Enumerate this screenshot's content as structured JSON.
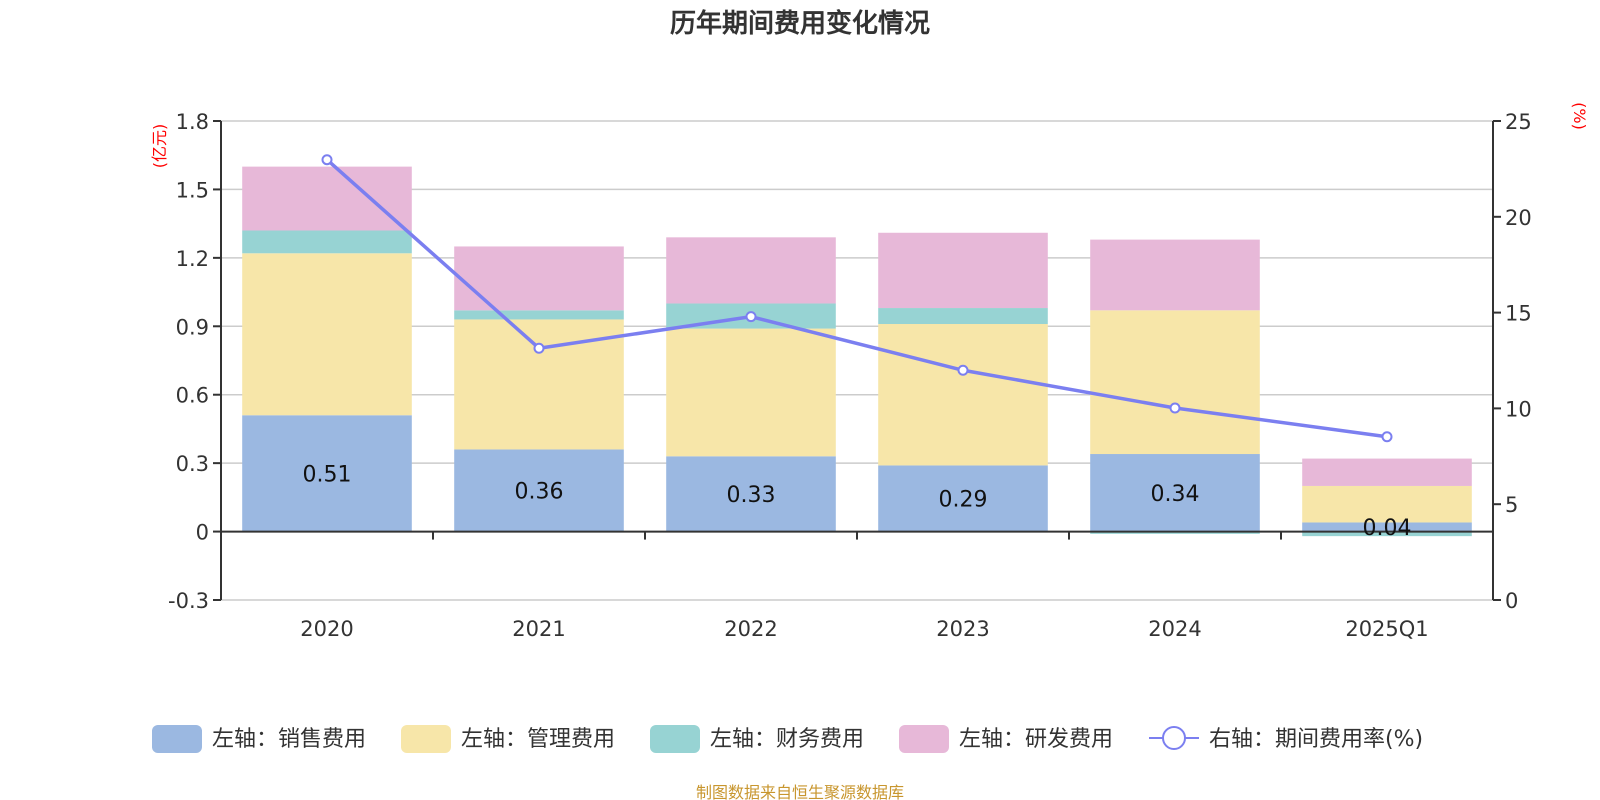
{
  "chart_data": {
    "type": "bar",
    "title": "历年期间费用变化情况",
    "categories": [
      "2020",
      "2021",
      "2022",
      "2023",
      "2024",
      "2025Q1"
    ],
    "left_axis": {
      "unit_label": "(亿元)",
      "ylim": [
        -0.3,
        1.8
      ],
      "ticks": [
        "1.8",
        "1.5",
        "1.2",
        "0.9",
        "0.6",
        "0.3",
        "0",
        "-0.3"
      ],
      "tick_values": [
        1.8,
        1.5,
        1.2,
        0.9,
        0.6,
        0.3,
        0,
        -0.3
      ]
    },
    "right_axis": {
      "unit_label": "(%)",
      "ylim": [
        0,
        25
      ],
      "ticks": [
        "25",
        "20",
        "15",
        "10",
        "5",
        "0"
      ],
      "tick_values": [
        25,
        20,
        15,
        10,
        5,
        0
      ]
    },
    "grid": true,
    "stacked": true,
    "series": [
      {
        "name": "左轴：销售费用",
        "axis": "left",
        "type": "bar",
        "color": "#9bb8e1",
        "values": [
          0.51,
          0.36,
          0.33,
          0.29,
          0.34,
          0.04
        ],
        "data_labels": [
          "0.51",
          "0.36",
          "0.33",
          "0.29",
          "0.34",
          "0.04"
        ]
      },
      {
        "name": "左轴：管理费用",
        "axis": "left",
        "type": "bar",
        "color": "#f7e6a9",
        "values": [
          0.71,
          0.57,
          0.56,
          0.62,
          0.63,
          0.16
        ]
      },
      {
        "name": "左轴：财务费用",
        "axis": "left",
        "type": "bar",
        "color": "#97d3d3",
        "values": [
          0.1,
          0.04,
          0.11,
          0.07,
          -0.01,
          -0.02
        ]
      },
      {
        "name": "左轴：研发费用",
        "axis": "left",
        "type": "bar",
        "color": "#e7b8d8",
        "values": [
          0.28,
          0.28,
          0.29,
          0.33,
          0.31,
          0.12
        ]
      },
      {
        "name": "右轴：期间费用率(%)",
        "axis": "right",
        "type": "line",
        "color": "#7b7ff0",
        "values": [
          22.98,
          13.14,
          14.79,
          11.99,
          10.02,
          8.52
        ]
      }
    ],
    "legend_position": "bottom"
  },
  "footer": "制图数据来自恒生聚源数据库"
}
